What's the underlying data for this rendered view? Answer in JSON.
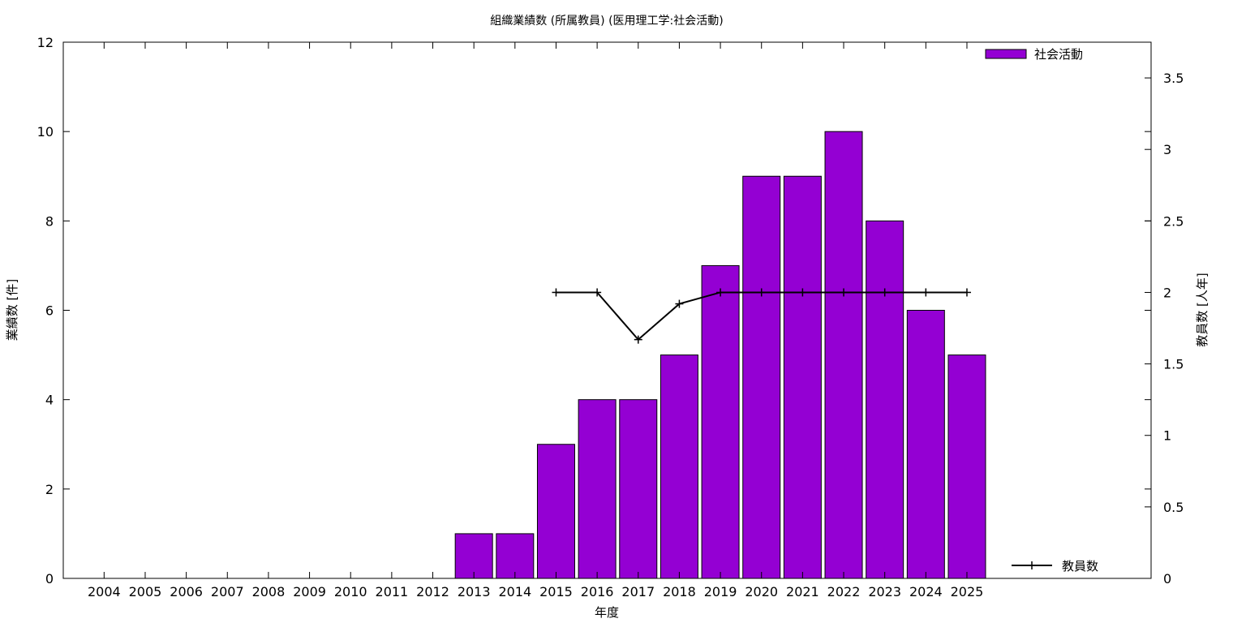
{
  "chart_data": {
    "type": "bar",
    "title": "組織業績数 (所属教員) (医用理工学:社会活動)",
    "xlabel": "年度",
    "ylabel": "業績数 [件]",
    "y2label": "教員数 [人年]",
    "categories": [
      "2004",
      "2005",
      "2006",
      "2007",
      "2008",
      "2009",
      "2010",
      "2011",
      "2012",
      "2013",
      "2014",
      "2015",
      "2016",
      "2017",
      "2018",
      "2019",
      "2020",
      "2021",
      "2022",
      "2023",
      "2024",
      "2025"
    ],
    "ylim": [
      0,
      12
    ],
    "y2lim": [
      0,
      3.75
    ],
    "yticks": [
      "0",
      "2",
      "4",
      "6",
      "8",
      "10",
      "12"
    ],
    "y2ticks": [
      "0",
      "0.5",
      "1",
      "1.5",
      "2",
      "2.5",
      "3",
      "3.5"
    ],
    "grid": false,
    "series": [
      {
        "name": "社会活動",
        "type": "bar",
        "axis": "left",
        "color": "#9400d3",
        "values": [
          0,
          0,
          0,
          0,
          0,
          0,
          0,
          0,
          0,
          1,
          1,
          3,
          4,
          4,
          5,
          7,
          9,
          9,
          10,
          8,
          6,
          5
        ]
      },
      {
        "name": "教員数",
        "type": "line",
        "axis": "right",
        "color": "#000000",
        "values": [
          null,
          null,
          null,
          null,
          null,
          null,
          null,
          null,
          null,
          null,
          null,
          2,
          2,
          1.67,
          1.92,
          2,
          2,
          2,
          2,
          2,
          2,
          2
        ]
      }
    ],
    "legend": [
      "top-right",
      "bottom-right"
    ]
  }
}
